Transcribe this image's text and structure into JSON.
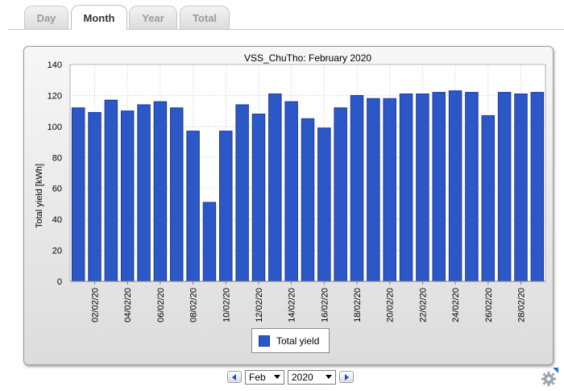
{
  "tabs": [
    {
      "label": "Day",
      "active": false
    },
    {
      "label": "Month",
      "active": true
    },
    {
      "label": "Year",
      "active": false
    },
    {
      "label": "Total",
      "active": false
    }
  ],
  "controls": {
    "prev_icon": "triangle-left-icon",
    "next_icon": "triangle-right-icon",
    "month_value": "Feb",
    "year_value": "2020",
    "settings_icon": "gear-icon"
  },
  "colors": {
    "bar": "#2c57c6",
    "bar_border": "#1b3c98"
  },
  "chart_data": {
    "type": "bar",
    "title": "VSS_ChuTho: February 2020",
    "ylabel": "Total yield [kWh]",
    "xlabel": "",
    "ylim": [
      0,
      140
    ],
    "y_ticks": [
      "0",
      "20",
      "40",
      "60",
      "80",
      "100",
      "120",
      "140"
    ],
    "grid": true,
    "legend": "bottom-center",
    "categories": [
      "01/02/20",
      "02/02/20",
      "03/02/20",
      "04/02/20",
      "05/02/20",
      "06/02/20",
      "07/02/20",
      "08/02/20",
      "09/02/20",
      "10/02/20",
      "11/02/20",
      "12/02/20",
      "13/02/20",
      "14/02/20",
      "15/02/20",
      "16/02/20",
      "17/02/20",
      "18/02/20",
      "19/02/20",
      "20/02/20",
      "21/02/20",
      "22/02/20",
      "23/02/20",
      "24/02/20",
      "25/02/20",
      "26/02/20",
      "27/02/20",
      "28/02/20",
      "29/02/20"
    ],
    "x_tick_labels": [
      "02/02/20",
      "04/02/20",
      "06/02/20",
      "08/02/20",
      "10/02/20",
      "12/02/20",
      "14/02/20",
      "16/02/20",
      "18/02/20",
      "20/02/20",
      "22/02/20",
      "24/02/20",
      "26/02/20",
      "28/02/20"
    ],
    "series": [
      {
        "name": "Total yield",
        "values": [
          112,
          109,
          117,
          110,
          114,
          116,
          112,
          97,
          51,
          97,
          114,
          108,
          121,
          116,
          105,
          99,
          112,
          120,
          118,
          118,
          121,
          121,
          122,
          123,
          122,
          107,
          122,
          121,
          122
        ]
      }
    ]
  }
}
